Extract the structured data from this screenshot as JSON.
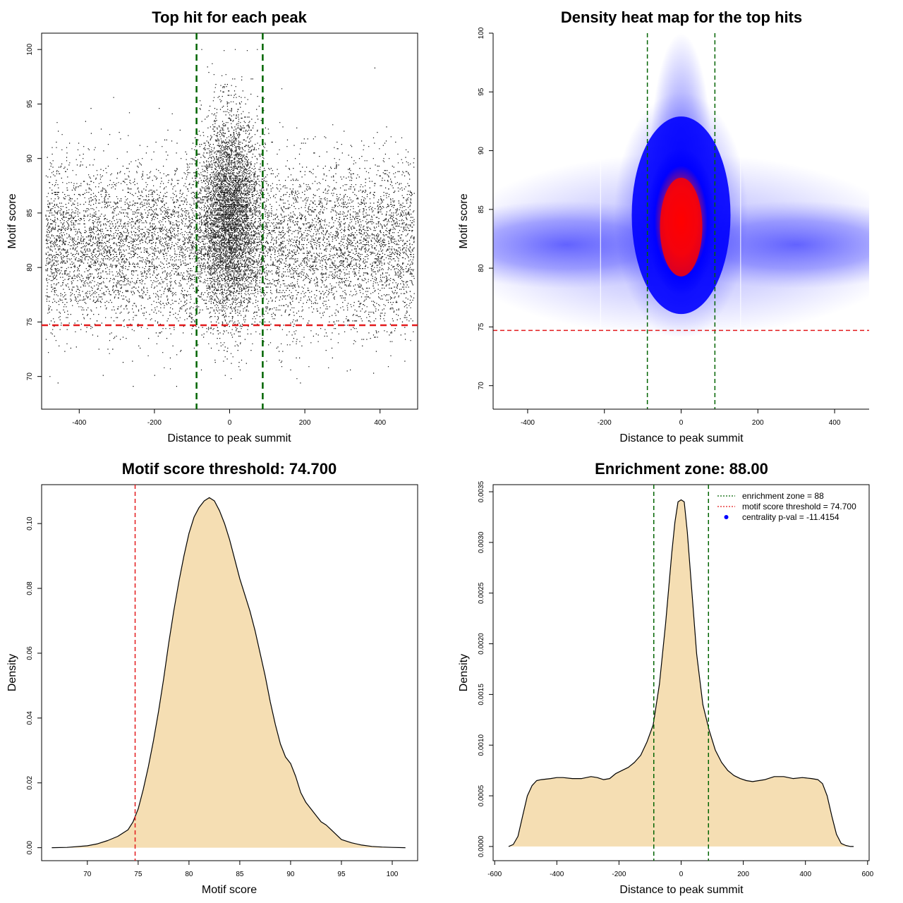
{
  "colors": {
    "green_line": "#006400",
    "red_line": "#e31a1c",
    "fill": "#f5deb3",
    "scatter": "#000000",
    "heat_low": "#ffffff",
    "heat_mid": "#0000ff",
    "heat_high": "#ff0000"
  },
  "chart_data": [
    {
      "type": "scatter",
      "title": "Top hit for each peak",
      "xlabel": "Distance to peak summit",
      "ylabel": "Motif score",
      "xlim": [
        -500,
        500
      ],
      "ylim": [
        67,
        101.5
      ],
      "xticks": [
        "-400",
        "-200",
        "0",
        "200",
        "400"
      ],
      "xtick_values": [
        -400,
        -200,
        0,
        200,
        400
      ],
      "yticks": [
        "70",
        "75",
        "80",
        "85",
        "90",
        "95",
        "100"
      ],
      "ytick_values": [
        70,
        75,
        80,
        85,
        90,
        95,
        100
      ],
      "vlines": [
        -88,
        88
      ],
      "hline": 74.7,
      "distribution": {
        "background": {
          "x_range": [
            -490,
            490
          ],
          "score_mean": 82,
          "score_sd": 3.8,
          "fraction": 0.68
        },
        "central": {
          "x_mean": 0,
          "x_sd": 38,
          "score_mean": 85,
          "score_sd": 4.5,
          "fraction": 0.32
        }
      }
    },
    {
      "type": "heatmap",
      "title": "Density heat map for the top hits",
      "xlabel": "Distance to peak summit",
      "ylabel": "Motif score",
      "xlim": [
        -490,
        490
      ],
      "ylim": [
        68,
        100
      ],
      "xticks": [
        "-400",
        "-200",
        "0",
        "200",
        "400"
      ],
      "xtick_values": [
        -400,
        -200,
        0,
        200,
        400
      ],
      "yticks": [
        "70",
        "75",
        "80",
        "85",
        "90",
        "95",
        "100"
      ],
      "ytick_values": [
        70,
        75,
        80,
        85,
        90,
        95,
        100
      ],
      "vlines": [
        -88,
        88
      ],
      "hline": 74.7
    },
    {
      "type": "area",
      "title": "Motif score threshold: 74.700",
      "xlabel": "Motif score",
      "ylabel": "Density",
      "xlim": [
        65.5,
        102.5
      ],
      "ylim": [
        -0.004,
        0.112
      ],
      "xticks": [
        "70",
        "75",
        "80",
        "85",
        "90",
        "95",
        "100"
      ],
      "xtick_values": [
        70,
        75,
        80,
        85,
        90,
        95,
        100
      ],
      "yticks": [
        "0.00",
        "0.02",
        "0.04",
        "0.06",
        "0.08",
        "0.10"
      ],
      "ytick_values": [
        0,
        0.02,
        0.04,
        0.06,
        0.08,
        0.1
      ],
      "vline": 74.7,
      "x": [
        66.5,
        68,
        70,
        71,
        72,
        73,
        73.5,
        74,
        74.5,
        75,
        75.5,
        76,
        76.5,
        77,
        77.5,
        78,
        78.5,
        79,
        79.5,
        80,
        80.5,
        81,
        81.5,
        82,
        82.5,
        83,
        83.5,
        84,
        84.5,
        85,
        85.5,
        86,
        86.5,
        87,
        87.5,
        88,
        88.5,
        89,
        89.5,
        90,
        90.5,
        91,
        91.5,
        92,
        92.5,
        93,
        93.5,
        94,
        94.5,
        95,
        96,
        97,
        98,
        99,
        100,
        101.3
      ],
      "y": [
        0,
        0.0001,
        0.0006,
        0.0012,
        0.0022,
        0.0035,
        0.0045,
        0.0055,
        0.008,
        0.012,
        0.018,
        0.025,
        0.033,
        0.042,
        0.052,
        0.063,
        0.073,
        0.082,
        0.09,
        0.097,
        0.102,
        0.105,
        0.107,
        0.108,
        0.107,
        0.104,
        0.1,
        0.095,
        0.089,
        0.083,
        0.078,
        0.073,
        0.067,
        0.06,
        0.053,
        0.045,
        0.038,
        0.032,
        0.028,
        0.026,
        0.022,
        0.017,
        0.014,
        0.012,
        0.01,
        0.008,
        0.007,
        0.0055,
        0.004,
        0.0025,
        0.0015,
        0.0008,
        0.0004,
        0.0002,
        0.0001,
        0
      ]
    },
    {
      "type": "area",
      "title": "Enrichment zone: 88.00",
      "xlabel": "Distance to peak summit",
      "ylabel": "Density",
      "xlim": [
        -605,
        605
      ],
      "ylim": [
        -0.00014,
        0.00357
      ],
      "xticks": [
        "-600",
        "-400",
        "-200",
        "0",
        "200",
        "400",
        "600"
      ],
      "xtick_values": [
        -600,
        -400,
        -200,
        0,
        200,
        400,
        600
      ],
      "yticks": [
        "0.0000",
        "0.0005",
        "0.0010",
        "0.0015",
        "0.0020",
        "0.0025",
        "0.0030",
        "0.0035"
      ],
      "ytick_values": [
        0,
        0.0005,
        0.001,
        0.0015,
        0.002,
        0.0025,
        0.003,
        0.0035
      ],
      "vlines": [
        -88,
        88
      ],
      "x": [
        -555,
        -540,
        -525,
        -510,
        -495,
        -480,
        -465,
        -450,
        -420,
        -400,
        -380,
        -350,
        -320,
        -290,
        -270,
        -250,
        -230,
        -210,
        -190,
        -170,
        -150,
        -130,
        -110,
        -90,
        -70,
        -50,
        -30,
        -20,
        -10,
        0,
        10,
        20,
        30,
        50,
        70,
        90,
        110,
        130,
        150,
        170,
        190,
        210,
        230,
        250,
        270,
        300,
        330,
        360,
        390,
        420,
        440,
        455,
        470,
        485,
        500,
        515,
        530,
        545,
        555
      ],
      "y": [
        0,
        2e-05,
        0.0001,
        0.0003,
        0.0005,
        0.0006,
        0.00065,
        0.00066,
        0.00067,
        0.00068,
        0.00068,
        0.00067,
        0.00067,
        0.00069,
        0.00068,
        0.00066,
        0.00067,
        0.00072,
        0.00075,
        0.00078,
        0.00083,
        0.0009,
        0.00103,
        0.0012,
        0.0016,
        0.0022,
        0.0029,
        0.0032,
        0.0034,
        0.00342,
        0.0034,
        0.0031,
        0.0027,
        0.0019,
        0.0014,
        0.00115,
        0.00095,
        0.00083,
        0.00075,
        0.0007,
        0.00067,
        0.00065,
        0.00064,
        0.00065,
        0.00066,
        0.00069,
        0.00069,
        0.00067,
        0.00068,
        0.00067,
        0.00066,
        0.00062,
        0.0005,
        0.0003,
        0.00012,
        3e-05,
        1e-05,
        0,
        0
      ],
      "legend": [
        {
          "label": "enrichment zone = 88",
          "style": "dotted",
          "color": "#006400"
        },
        {
          "label": "motif score threshold = 74.700",
          "style": "dotted",
          "color": "#e31a1c"
        },
        {
          "label": "centrality p-val = -11.4154",
          "style": "point",
          "color": "#0000ff"
        }
      ]
    }
  ]
}
